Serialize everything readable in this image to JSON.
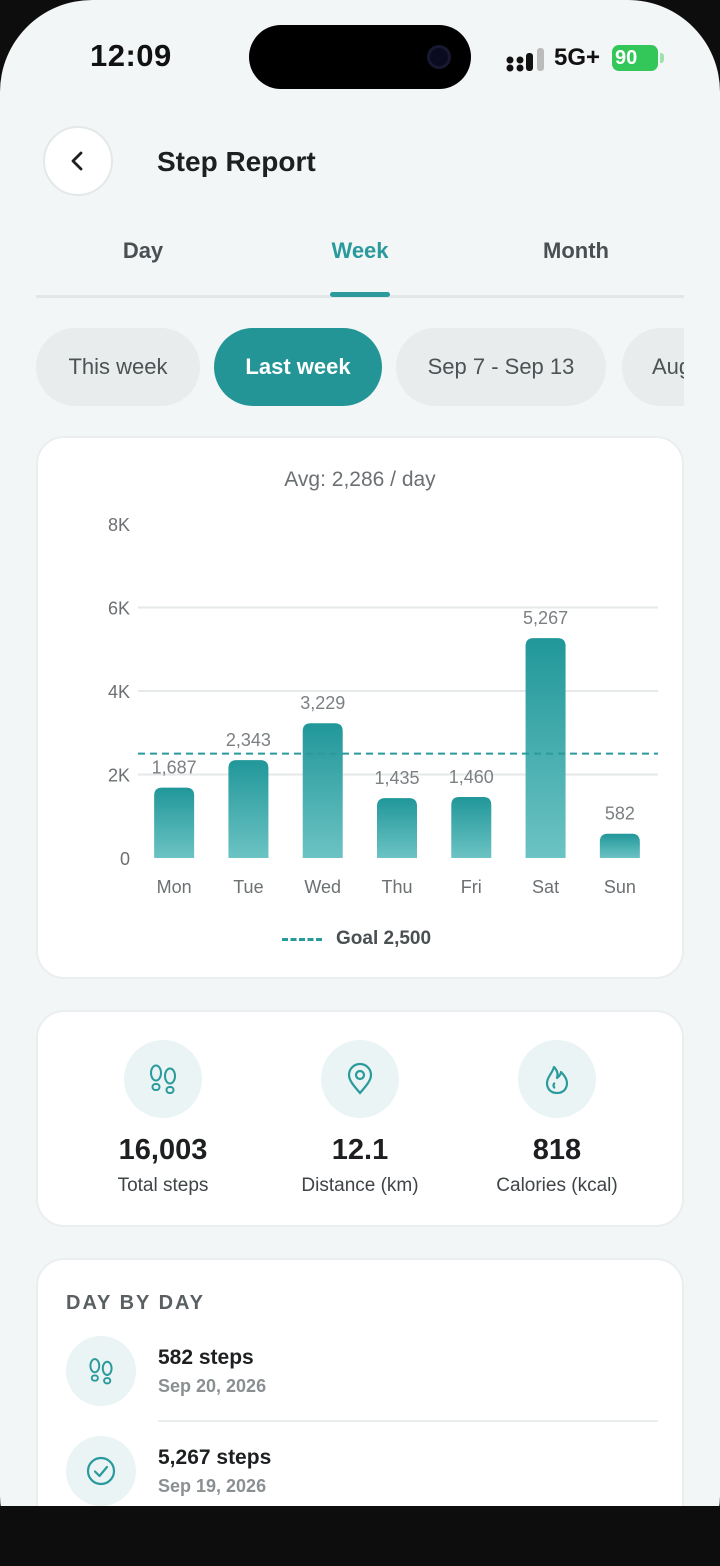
{
  "status_bar": {
    "time": "12:09",
    "network": "5G+",
    "battery": "90"
  },
  "header": {
    "title": "Step Report"
  },
  "tabs": [
    {
      "label": "Day",
      "active": false
    },
    {
      "label": "Week",
      "active": true
    },
    {
      "label": "Month",
      "active": false
    }
  ],
  "chips": [
    {
      "label": "This week",
      "active": false
    },
    {
      "label": "Last week",
      "active": true
    },
    {
      "label": "Sep 7 - Sep 13",
      "active": false
    },
    {
      "label": "Aug",
      "active": false
    }
  ],
  "chart_card": {
    "avg_label": "Avg: 2,286 / day",
    "legend_label": "Goal 2,500"
  },
  "chart_data": {
    "type": "bar",
    "categories": [
      "Mon",
      "Tue",
      "Wed",
      "Thu",
      "Fri",
      "Sat",
      "Sun"
    ],
    "values": [
      1687,
      2343,
      3229,
      1435,
      1460,
      5267,
      582
    ],
    "value_labels": [
      "1,687",
      "2,343",
      "3,229",
      "1,435",
      "1,460",
      "5,267",
      "582"
    ],
    "y_ticks": [
      0,
      2000,
      4000,
      6000,
      8000
    ],
    "y_tick_labels": [
      "0",
      "2K",
      "4K",
      "6K",
      "8K"
    ],
    "ylim": [
      0,
      8000
    ],
    "goal": 2500,
    "grid": true,
    "bar_color_top": "#21979a",
    "bar_color_bottom": "#6cc3c3",
    "goal_color": "#2a9a9c"
  },
  "stats": [
    {
      "icon": "footprints-icon",
      "value": "16,003",
      "label": "Total steps"
    },
    {
      "icon": "location-pin-icon",
      "value": "12.1",
      "label": "Distance (km)"
    },
    {
      "icon": "flame-icon",
      "value": "818",
      "label": "Calories (kcal)"
    }
  ],
  "day_by_day": {
    "title": "DAY BY DAY",
    "entries": [
      {
        "icon": "footprints-icon",
        "steps": "582 steps",
        "date": "Sep 20, 2026"
      },
      {
        "icon": "check-circle-icon",
        "steps": "5,267 steps",
        "date": "Sep 19, 2026"
      }
    ]
  },
  "colors": {
    "accent": "#239597",
    "background": "#f3f6f6"
  }
}
